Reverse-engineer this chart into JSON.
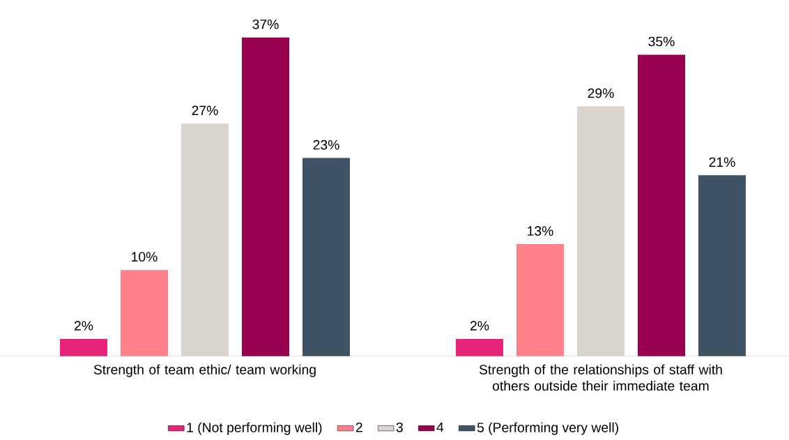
{
  "chart_data": {
    "type": "bar",
    "categories": [
      "Strength of team ethic/ team working",
      "Strength of the relationships of staff with others outside their immediate team"
    ],
    "series": [
      {
        "name": "1 (Not performing well)",
        "color": "#e8247a",
        "values": [
          2,
          2
        ],
        "value_labels": [
          "2%",
          "2%"
        ]
      },
      {
        "name": "2",
        "color": "#ff8088",
        "values": [
          10,
          13
        ],
        "value_labels": [
          "10%",
          "13%"
        ]
      },
      {
        "name": "3",
        "color": "#d9d4ce",
        "values": [
          27,
          29
        ],
        "value_labels": [
          "27%",
          "29%"
        ]
      },
      {
        "name": "4",
        "color": "#990050",
        "values": [
          37,
          35
        ],
        "value_labels": [
          "37%",
          "35%"
        ]
      },
      {
        "name": "5 (Performing very well)",
        "color": "#405364",
        "values": [
          23,
          21
        ],
        "value_labels": [
          "23%",
          "21%"
        ]
      }
    ],
    "legend": "bottom"
  }
}
